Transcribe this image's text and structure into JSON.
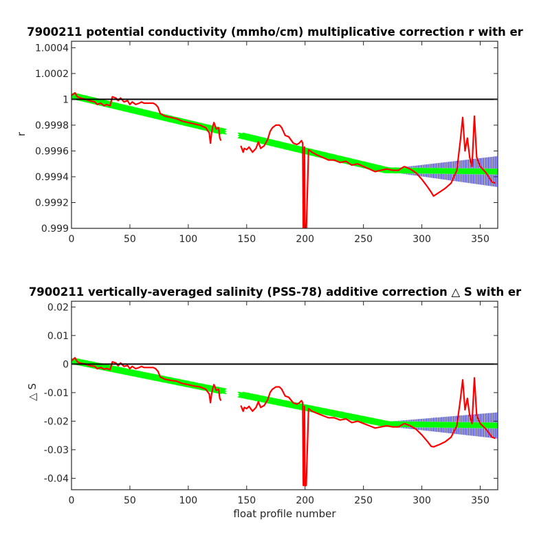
{
  "colors": {
    "fit_line": "#00ff00",
    "error_bars": "#0000cc",
    "raw_correction": "#ff0000",
    "zero_line": "#000000",
    "axes": "#262626"
  },
  "chart_data": [
    {
      "type": "line",
      "title": "7900211 potential conductivity (mmho/cm) multiplicative correction r with er",
      "xlabel": "",
      "ylabel": "r",
      "xlim": [
        0,
        365
      ],
      "ylim": [
        0.999,
        1.00045
      ],
      "x_ticks": [
        0,
        50,
        100,
        150,
        200,
        250,
        300,
        350
      ],
      "x_tick_labels": [
        "0",
        "50",
        "100",
        "150",
        "200",
        "250",
        "300",
        "350"
      ],
      "y_ticks": [
        0.999,
        0.9992,
        0.9994,
        0.9996,
        0.9998,
        1,
        1.0002,
        1.0004
      ],
      "y_tick_labels": [
        "0.999",
        "0.9992",
        "0.9994",
        "0.9996",
        "0.9998",
        "1",
        "1.0002",
        "1.0004"
      ],
      "grid": false,
      "reference_line": 1,
      "fit_segments": [
        {
          "x_start": 0,
          "x_end": 130,
          "y_start": 1.00003,
          "y_end": 0.99975
        },
        {
          "x_start": 145,
          "x_end": 270,
          "y_start": 0.99972,
          "y_end": 0.99945
        },
        {
          "x_start": 270,
          "x_end": 365,
          "y_start": 0.99945,
          "y_end": 0.99944
        }
      ],
      "error_bands": [
        {
          "x_start": 0,
          "x_end": 130,
          "half_width_start": 5e-06,
          "half_width_end": 6e-06
        },
        {
          "x_start": 145,
          "x_end": 270,
          "half_width_start": 5e-06,
          "half_width_end": 8e-06
        },
        {
          "x_start": 270,
          "x_end": 365,
          "half_width_start": 1e-05,
          "half_width_end": 0.00012
        }
      ],
      "raw_series": [
        {
          "x": [
            0,
            3,
            5,
            8,
            12,
            15,
            20,
            22,
            25,
            28,
            30,
            33,
            35,
            38,
            40,
            42,
            45,
            48,
            50,
            52,
            55,
            58,
            60,
            62,
            65,
            68,
            70,
            72,
            74,
            76,
            80,
            85,
            90,
            95,
            100,
            105,
            110,
            115,
            118,
            119,
            120,
            121,
            122,
            124,
            126,
            127,
            128
          ],
          "y": [
            1.00003,
            1.00005,
            1.00002,
            1.00001,
            1.0,
            0.99999,
            0.99998,
            0.99996,
            0.99997,
            0.99995,
            0.99996,
            0.99995,
            1.00002,
            1.00001,
            0.99999,
            1.00001,
            0.99998,
            0.99999,
            0.99996,
            0.99998,
            0.99996,
            0.99997,
            0.99998,
            0.99997,
            0.99997,
            0.99997,
            0.99997,
            0.99996,
            0.99994,
            0.99989,
            0.99987,
            0.99986,
            0.99985,
            0.99983,
            0.99982,
            0.99981,
            0.9998,
            0.99978,
            0.99974,
            0.99966,
            0.99974,
            0.99979,
            0.99982,
            0.99977,
            0.99978,
            0.9997,
            0.99968
          ]
        },
        {
          "x": [
            145,
            147,
            148,
            150,
            152,
            155,
            158,
            160,
            162,
            165,
            168,
            170,
            172,
            175,
            178,
            180,
            183,
            186,
            190,
            193,
            195,
            197,
            198,
            198.5,
            199,
            199.5,
            200,
            201,
            203,
            206,
            210,
            215,
            220,
            225,
            230,
            235,
            240,
            245,
            250,
            255,
            260,
            265,
            270,
            275,
            280,
            285
          ],
          "y": [
            0.99964,
            0.99959,
            0.99962,
            0.99961,
            0.99963,
            0.99959,
            0.99962,
            0.99967,
            0.99962,
            0.99964,
            0.99969,
            0.99975,
            0.99978,
            0.9998,
            0.9998,
            0.99978,
            0.99972,
            0.99971,
            0.99966,
            0.99965,
            0.99966,
            0.99968,
            0.99966,
            0.99895,
            0.99895,
            0.99963,
            0.99895,
            0.99895,
            0.99961,
            0.99959,
            0.99957,
            0.99955,
            0.99953,
            0.99953,
            0.99951,
            0.99952,
            0.99949,
            0.9995,
            0.99948,
            0.99946,
            0.99944,
            0.99945,
            0.99946,
            0.99945,
            0.99945,
            0.99948
          ]
        },
        {
          "x": [
            285,
            290,
            295,
            300,
            305,
            308,
            310,
            315,
            320,
            325,
            330,
            333,
            335,
            337,
            339,
            341,
            343,
            345,
            347,
            350,
            355,
            360,
            363
          ],
          "y": [
            0.99948,
            0.99946,
            0.99943,
            0.99938,
            0.99932,
            0.99928,
            0.99925,
            0.99928,
            0.99931,
            0.99935,
            0.99945,
            0.99968,
            0.99986,
            0.9996,
            0.9997,
            0.99955,
            0.99948,
            0.99987,
            0.99955,
            0.99948,
            0.99943,
            0.99936,
            0.99935
          ]
        }
      ]
    },
    {
      "type": "line",
      "title": "7900211 vertically-averaged salinity (PSS-78) additive correction △ S with er",
      "xlabel": "float profile number",
      "ylabel": "△ S",
      "xlim": [
        0,
        365
      ],
      "ylim": [
        -0.044,
        0.022
      ],
      "x_ticks": [
        0,
        50,
        100,
        150,
        200,
        250,
        300,
        350
      ],
      "x_tick_labels": [
        "0",
        "50",
        "100",
        "150",
        "200",
        "250",
        "300",
        "350"
      ],
      "y_ticks": [
        -0.04,
        -0.03,
        -0.02,
        -0.01,
        0,
        0.01,
        0.02
      ],
      "y_tick_labels": [
        "-0.04",
        "-0.03",
        "-0.02",
        "-0.01",
        "0",
        "0.01",
        "0.02"
      ],
      "grid": false,
      "reference_line": 0,
      "fit_segments": [
        {
          "x_start": 0,
          "x_end": 130,
          "y_start": 0.0012,
          "y_end": -0.0095
        },
        {
          "x_start": 145,
          "x_end": 270,
          "y_start": -0.0107,
          "y_end": -0.021
        },
        {
          "x_start": 270,
          "x_end": 365,
          "y_start": -0.021,
          "y_end": -0.0215
        }
      ],
      "error_bands": [
        {
          "x_start": 0,
          "x_end": 130,
          "half_width_start": 0.0005,
          "half_width_end": 0.0006
        },
        {
          "x_start": 145,
          "x_end": 270,
          "half_width_start": 0.0005,
          "half_width_end": 0.0007
        },
        {
          "x_start": 270,
          "x_end": 365,
          "half_width_start": 0.0008,
          "half_width_end": 0.0046
        }
      ],
      "raw_series": [
        {
          "x": [
            0,
            3,
            5,
            8,
            12,
            15,
            20,
            22,
            25,
            28,
            30,
            33,
            35,
            38,
            40,
            42,
            45,
            48,
            50,
            52,
            55,
            58,
            60,
            62,
            65,
            68,
            70,
            72,
            74,
            76,
            80,
            85,
            90,
            95,
            100,
            105,
            110,
            115,
            118,
            119,
            120,
            121,
            122,
            124,
            126,
            127,
            128
          ],
          "y": [
            0.0012,
            0.0022,
            0.0008,
            0.0003,
            0.0,
            -0.0005,
            -0.0008,
            -0.0016,
            -0.0012,
            -0.0018,
            -0.0015,
            -0.002,
            0.0008,
            0.0004,
            -0.0006,
            0.0004,
            -0.0008,
            -0.0005,
            -0.0016,
            -0.0008,
            -0.0016,
            -0.0012,
            -0.0008,
            -0.0012,
            -0.0012,
            -0.0012,
            -0.0012,
            -0.0016,
            -0.0025,
            -0.0045,
            -0.0053,
            -0.0057,
            -0.006,
            -0.0068,
            -0.0072,
            -0.0077,
            -0.008,
            -0.0088,
            -0.0105,
            -0.0135,
            -0.0105,
            -0.0085,
            -0.0072,
            -0.0092,
            -0.0088,
            -0.012,
            -0.0128
          ]
        },
        {
          "x": [
            145,
            147,
            148,
            150,
            152,
            155,
            158,
            160,
            162,
            165,
            168,
            170,
            172,
            175,
            178,
            180,
            183,
            186,
            190,
            193,
            195,
            197,
            198,
            198.5,
            199,
            199.5,
            200,
            201,
            203,
            206,
            210,
            215,
            220,
            225,
            230,
            235,
            240,
            245,
            250,
            255,
            260,
            265,
            270,
            275,
            280,
            285
          ],
          "y": [
            -0.0145,
            -0.0165,
            -0.0152,
            -0.0156,
            -0.0148,
            -0.0165,
            -0.0152,
            -0.0132,
            -0.0152,
            -0.0145,
            -0.0125,
            -0.01,
            -0.0088,
            -0.008,
            -0.008,
            -0.0088,
            -0.0112,
            -0.0116,
            -0.0136,
            -0.014,
            -0.0136,
            -0.0128,
            -0.0136,
            -0.0425,
            -0.0425,
            -0.0148,
            -0.0425,
            -0.0425,
            -0.0156,
            -0.0165,
            -0.0172,
            -0.018,
            -0.0188,
            -0.0188,
            -0.0196,
            -0.0192,
            -0.0205,
            -0.02,
            -0.0208,
            -0.0216,
            -0.0224,
            -0.022,
            -0.0216,
            -0.022,
            -0.022,
            -0.0208
          ]
        },
        {
          "x": [
            285,
            290,
            295,
            300,
            305,
            308,
            310,
            315,
            320,
            325,
            330,
            333,
            335,
            337,
            339,
            341,
            343,
            345,
            347,
            350,
            355,
            360,
            363
          ],
          "y": [
            -0.0208,
            -0.0216,
            -0.0228,
            -0.0248,
            -0.0272,
            -0.0288,
            -0.029,
            -0.0282,
            -0.0272,
            -0.0256,
            -0.0216,
            -0.0125,
            -0.0055,
            -0.016,
            -0.012,
            -0.018,
            -0.0208,
            -0.0048,
            -0.018,
            -0.0208,
            -0.0228,
            -0.0256,
            -0.026
          ]
        }
      ]
    }
  ]
}
